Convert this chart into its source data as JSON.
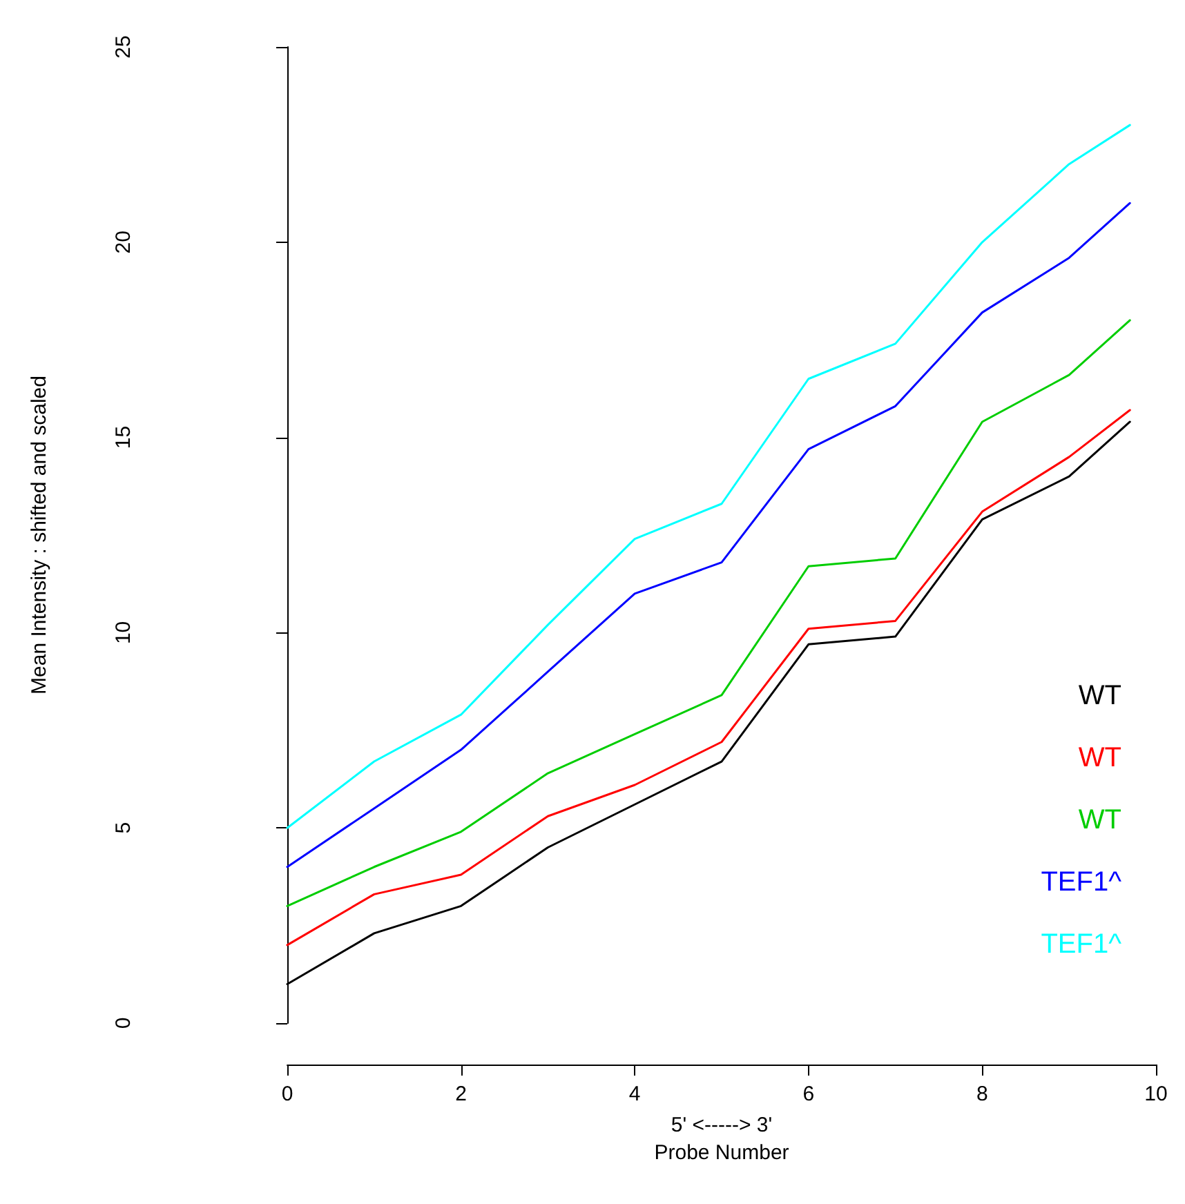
{
  "chart_data": {
    "type": "line",
    "xlabel": "Probe Number",
    "ylabel": "Mean Intensity : shifted and scaled",
    "annotations": [
      "5' <-----> 3'"
    ],
    "x": [
      0,
      1,
      2,
      3,
      4,
      5,
      6,
      7,
      8,
      9,
      9.7
    ],
    "xlim": [
      0,
      10
    ],
    "xticks": [
      0,
      2,
      4,
      6,
      8,
      10
    ],
    "ylim": [
      0,
      25
    ],
    "yticks": [
      0,
      5,
      10,
      15,
      20,
      25
    ],
    "grid": false,
    "legend": "right",
    "marker": "none",
    "line_style": "solid",
    "series": [
      {
        "name": "WT",
        "color": "#000000",
        "values": [
          1,
          2.3,
          3,
          4.5,
          5.6,
          6.7,
          9.7,
          9.9,
          12.9,
          14,
          15.4
        ]
      },
      {
        "name": "WT",
        "color": "#ff0000",
        "values": [
          2,
          3.3,
          3.8,
          5.3,
          6.1,
          7.2,
          10.1,
          10.3,
          13.1,
          14.5,
          15.7
        ]
      },
      {
        "name": "WT",
        "color": "#00cd00",
        "values": [
          3,
          4,
          4.9,
          6.4,
          7.4,
          8.4,
          11.7,
          11.9,
          15.4,
          16.6,
          18
        ]
      },
      {
        "name": "TEF1^",
        "color": "#0000ff",
        "values": [
          4,
          5.5,
          7,
          9,
          11,
          11.8,
          14.7,
          15.8,
          18.2,
          19.6,
          21
        ]
      },
      {
        "name": "TEF1^",
        "color": "#00ffff",
        "values": [
          5,
          6.7,
          7.9,
          10.2,
          12.4,
          13.3,
          16.5,
          17.4,
          20,
          22,
          23
        ]
      }
    ]
  }
}
